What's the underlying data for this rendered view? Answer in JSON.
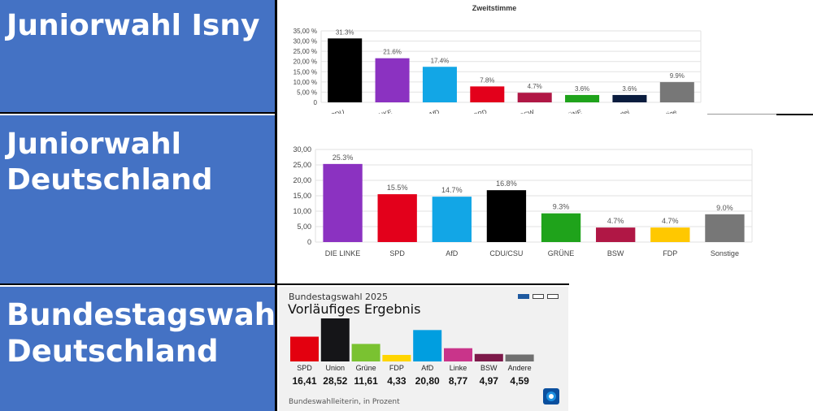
{
  "panels": [
    {
      "label_lines": [
        "Juniorwahl Isny"
      ]
    },
    {
      "label_lines": [
        "Juniorwahl",
        "Deutschland"
      ]
    },
    {
      "label_lines": [
        "Bundestagswahl",
        "Deutschland"
      ]
    }
  ],
  "chart_data": [
    {
      "type": "bar",
      "title": "Zweitstimme",
      "categories": [
        "CDU",
        "DIE LINKE",
        "AfD",
        "SPD",
        "BSW",
        "GRÜNE",
        "Tierschutzpartei",
        "Sonstige"
      ],
      "values": [
        31.3,
        21.6,
        17.4,
        7.8,
        4.7,
        3.6,
        3.6,
        9.9
      ],
      "value_labels": [
        "31.3%",
        "21.6%",
        "17.4%",
        "7.8%",
        "4.7%",
        "3.6%",
        "3.6%",
        "9.9%"
      ],
      "colors": [
        "#000000",
        "#8b32c1",
        "#12a6e6",
        "#e3001b",
        "#b01745",
        "#1fa31b",
        "#0a1c3e",
        "#777777"
      ],
      "yticks": [
        "0",
        "5,00 %",
        "10,00 %",
        "15,00 %",
        "20,00 %",
        "25,00 %",
        "30,00 %",
        "35,00 %"
      ],
      "ylim": [
        0,
        35
      ],
      "grid": true
    },
    {
      "type": "bar",
      "categories": [
        "DIE LINKE",
        "SPD",
        "AfD",
        "CDU/CSU",
        "GRÜNE",
        "BSW",
        "FDP",
        "Sonstige"
      ],
      "values": [
        25.3,
        15.5,
        14.7,
        16.8,
        9.3,
        4.7,
        4.7,
        9.0
      ],
      "value_labels": [
        "25.3%",
        "15.5%",
        "14.7%",
        "16.8%",
        "9.3%",
        "4.7%",
        "4.7%",
        "9.0%"
      ],
      "colors": [
        "#8b32c1",
        "#e3001b",
        "#12a6e6",
        "#000000",
        "#1fa31b",
        "#b01745",
        "#ffc800",
        "#777777"
      ],
      "yticks": [
        "0",
        "5,00",
        "10,00",
        "15,00",
        "20,00",
        "25,00",
        "30,00"
      ],
      "ylim": [
        0,
        30
      ],
      "grid": true
    },
    {
      "type": "bar",
      "header": "Bundestagswahl 2025",
      "title": "Vorläufiges Ergebnis",
      "categories": [
        "SPD",
        "Union",
        "Grüne",
        "FDP",
        "AfD",
        "Linke",
        "BSW",
        "Andere"
      ],
      "values": [
        16.41,
        28.52,
        11.61,
        4.33,
        20.8,
        8.77,
        4.97,
        4.59
      ],
      "value_labels": [
        "16,41",
        "28,52",
        "11,61",
        "4,33",
        "20,80",
        "8,77",
        "4,97",
        "4,59"
      ],
      "colors": [
        "#e3000f",
        "#151518",
        "#7ac231",
        "#ffd500",
        "#009ee0",
        "#c9348a",
        "#7d1a4a",
        "#707070"
      ],
      "footnote": "Bundeswahlleiterin, in Prozent",
      "grid": false
    }
  ]
}
